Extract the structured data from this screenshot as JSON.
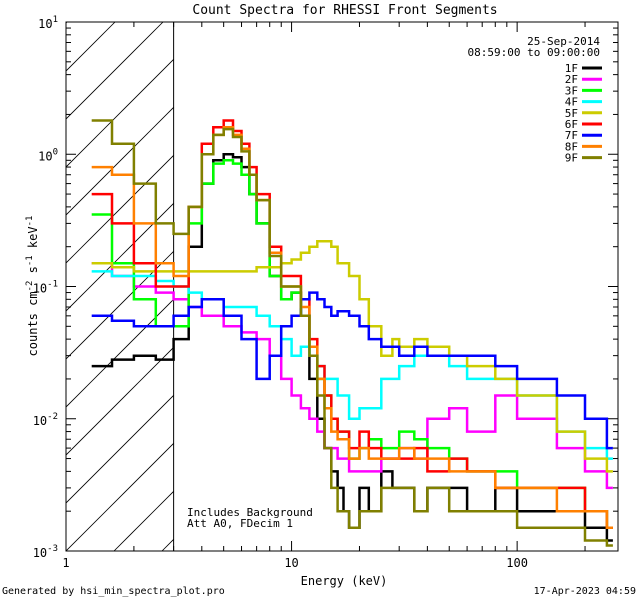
{
  "chart_data": {
    "type": "line",
    "title": "Count Spectra for RHESSI Front Segments",
    "xlabel": "Energy (keV)",
    "ylabel_parts": [
      "counts cm",
      "-2",
      " s",
      "-1",
      " keV",
      "-1"
    ],
    "xscale": "log",
    "yscale": "log",
    "xlim": [
      1,
      280
    ],
    "ylim": [
      0.001,
      10
    ],
    "x_ticks": [
      {
        "value": 1,
        "label": "1"
      },
      {
        "value": 10,
        "label": "10"
      },
      {
        "value": 100,
        "label": "100"
      }
    ],
    "y_ticks": [
      {
        "value": 0.001,
        "base": "10",
        "exp": "-3"
      },
      {
        "value": 0.01,
        "base": "10",
        "exp": "-2"
      },
      {
        "value": 0.1,
        "base": "10",
        "exp": "-1"
      },
      {
        "value": 1,
        "base": "10",
        "exp": "0"
      },
      {
        "value": 10,
        "base": "10",
        "exp": "1"
      }
    ],
    "hatched_region_x": [
      1,
      3
    ],
    "legend_position": "top-right",
    "header_lines": [
      "25-Sep-2014",
      "08:59:00 to 09:00:00"
    ],
    "annotations": [
      "Includes Background",
      "Att A0, FDecim 1"
    ],
    "series": [
      {
        "name": "1F",
        "color": "#000000",
        "x": [
          1.3,
          1.6,
          2.0,
          2.5,
          3.0,
          3.5,
          4.0,
          4.5,
          5.0,
          5.5,
          6.0,
          6.5,
          7.0,
          8.0,
          9.0,
          10,
          11,
          12,
          13,
          14,
          15,
          16,
          17,
          18,
          20,
          22,
          25,
          28,
          30,
          35,
          40,
          50,
          60,
          80,
          100,
          150,
          200,
          250
        ],
        "y": [
          0.025,
          0.028,
          0.03,
          0.028,
          0.04,
          0.2,
          0.6,
          0.9,
          1.0,
          0.95,
          0.8,
          0.5,
          0.3,
          0.12,
          0.08,
          0.09,
          0.06,
          0.02,
          0.01,
          0.006,
          0.004,
          0.003,
          0.002,
          0.0015,
          0.003,
          0.002,
          0.004,
          0.003,
          0.003,
          0.002,
          0.003,
          0.003,
          0.002,
          0.003,
          0.002,
          0.002,
          0.0015,
          0.0012
        ]
      },
      {
        "name": "2F",
        "color": "#ff00ff",
        "x": [
          1.3,
          1.6,
          2.0,
          2.5,
          3.0,
          3.5,
          4.0,
          5.0,
          6.0,
          7.0,
          8.0,
          9.0,
          10,
          11,
          12,
          13,
          14,
          16,
          18,
          20,
          25,
          30,
          35,
          40,
          50,
          60,
          80,
          100,
          150,
          200,
          250
        ],
        "y": [
          0.15,
          0.12,
          0.1,
          0.09,
          0.08,
          0.07,
          0.06,
          0.05,
          0.045,
          0.04,
          0.03,
          0.02,
          0.015,
          0.012,
          0.01,
          0.008,
          0.006,
          0.005,
          0.004,
          0.004,
          0.005,
          0.006,
          0.005,
          0.01,
          0.012,
          0.008,
          0.015,
          0.01,
          0.006,
          0.004,
          0.003
        ]
      },
      {
        "name": "3F",
        "color": "#00ff00",
        "x": [
          1.3,
          1.6,
          2.0,
          2.5,
          3.0,
          3.5,
          4.0,
          4.5,
          5.0,
          5.5,
          6.0,
          6.5,
          7.0,
          8.0,
          9.0,
          10,
          11,
          12,
          13,
          14,
          15,
          16,
          18,
          20,
          22,
          25,
          30,
          35,
          40,
          50,
          60,
          80,
          100,
          150,
          200,
          250
        ],
        "y": [
          0.35,
          0.15,
          0.08,
          0.05,
          0.05,
          0.3,
          0.6,
          0.85,
          0.9,
          0.85,
          0.7,
          0.5,
          0.3,
          0.12,
          0.08,
          0.09,
          0.06,
          0.03,
          0.02,
          0.015,
          0.01,
          0.008,
          0.005,
          0.006,
          0.007,
          0.006,
          0.008,
          0.007,
          0.006,
          0.005,
          0.004,
          0.004,
          0.003,
          0.003,
          0.002,
          0.0015
        ]
      },
      {
        "name": "4F",
        "color": "#00ffff",
        "x": [
          1.3,
          1.6,
          2.0,
          2.5,
          3.0,
          3.5,
          4.0,
          5.0,
          6.0,
          7.0,
          8.0,
          9.0,
          10,
          11,
          12,
          13,
          14,
          16,
          18,
          20,
          25,
          30,
          35,
          40,
          50,
          60,
          80,
          100,
          150,
          200,
          250
        ],
        "y": [
          0.13,
          0.12,
          0.12,
          0.11,
          0.1,
          0.09,
          0.08,
          0.07,
          0.07,
          0.06,
          0.05,
          0.04,
          0.03,
          0.035,
          0.03,
          0.025,
          0.02,
          0.015,
          0.01,
          0.012,
          0.02,
          0.025,
          0.03,
          0.03,
          0.025,
          0.02,
          0.02,
          0.015,
          0.008,
          0.006,
          0.005
        ]
      },
      {
        "name": "5F",
        "color": "#cccc00",
        "x": [
          1.3,
          1.6,
          2.0,
          2.5,
          3.0,
          4.0,
          5.0,
          6.0,
          7.0,
          8.0,
          9.0,
          10,
          11,
          12,
          13,
          14,
          15,
          16,
          18,
          20,
          22,
          25,
          28,
          30,
          35,
          40,
          50,
          60,
          80,
          100,
          150,
          200,
          250
        ],
        "y": [
          0.15,
          0.14,
          0.13,
          0.13,
          0.13,
          0.13,
          0.13,
          0.13,
          0.14,
          0.14,
          0.15,
          0.16,
          0.18,
          0.2,
          0.22,
          0.22,
          0.2,
          0.15,
          0.12,
          0.08,
          0.05,
          0.03,
          0.04,
          0.035,
          0.04,
          0.035,
          0.03,
          0.025,
          0.02,
          0.015,
          0.008,
          0.005,
          0.004
        ]
      },
      {
        "name": "6F",
        "color": "#ff0000",
        "x": [
          1.3,
          1.6,
          2.0,
          2.5,
          3.0,
          3.5,
          4.0,
          4.5,
          5.0,
          5.5,
          6.0,
          6.5,
          7.0,
          8.0,
          9.0,
          10,
          11,
          12,
          13,
          14,
          15,
          16,
          18,
          20,
          22,
          25,
          30,
          35,
          40,
          50,
          60,
          80,
          100,
          150,
          200,
          250
        ],
        "y": [
          0.5,
          0.3,
          0.15,
          0.1,
          0.1,
          0.4,
          1.2,
          1.6,
          1.8,
          1.5,
          1.2,
          0.8,
          0.5,
          0.2,
          0.12,
          0.12,
          0.08,
          0.04,
          0.025,
          0.015,
          0.01,
          0.008,
          0.006,
          0.008,
          0.006,
          0.005,
          0.005,
          0.006,
          0.004,
          0.005,
          0.004,
          0.003,
          0.003,
          0.003,
          0.002,
          0.0015
        ]
      },
      {
        "name": "7F",
        "color": "#0000ff",
        "x": [
          1.3,
          1.6,
          2.0,
          2.5,
          3.0,
          3.5,
          4.0,
          5.0,
          6.0,
          7.0,
          8.0,
          9.0,
          10,
          11,
          12,
          13,
          14,
          15,
          16,
          18,
          20,
          22,
          25,
          30,
          35,
          40,
          50,
          60,
          80,
          100,
          150,
          200,
          250
        ],
        "y": [
          0.06,
          0.055,
          0.05,
          0.05,
          0.06,
          0.07,
          0.08,
          0.06,
          0.04,
          0.02,
          0.03,
          0.05,
          0.06,
          0.08,
          0.09,
          0.08,
          0.07,
          0.06,
          0.065,
          0.06,
          0.05,
          0.04,
          0.035,
          0.03,
          0.035,
          0.03,
          0.03,
          0.03,
          0.025,
          0.02,
          0.015,
          0.01,
          0.006
        ]
      },
      {
        "name": "8F",
        "color": "#ff8000",
        "x": [
          1.3,
          1.6,
          2.0,
          2.5,
          3.0,
          3.5,
          4.0,
          4.5,
          5.0,
          5.5,
          6.0,
          6.5,
          7.0,
          8.0,
          9.0,
          10,
          11,
          12,
          13,
          14,
          15,
          16,
          18,
          20,
          22,
          25,
          30,
          35,
          40,
          50,
          60,
          80,
          100,
          150,
          200,
          250
        ],
        "y": [
          0.8,
          0.7,
          0.3,
          0.15,
          0.12,
          0.4,
          1.0,
          1.4,
          1.6,
          1.4,
          1.1,
          0.7,
          0.45,
          0.18,
          0.1,
          0.1,
          0.07,
          0.035,
          0.02,
          0.012,
          0.008,
          0.007,
          0.005,
          0.006,
          0.005,
          0.005,
          0.006,
          0.005,
          0.005,
          0.004,
          0.004,
          0.003,
          0.003,
          0.002,
          0.002,
          0.0015
        ]
      },
      {
        "name": "9F",
        "color": "#808000",
        "x": [
          1.3,
          1.6,
          2.0,
          2.5,
          3.0,
          3.5,
          4.0,
          4.5,
          5.0,
          5.5,
          6.0,
          6.5,
          7.0,
          8.0,
          9.0,
          10,
          11,
          12,
          13,
          14,
          15,
          16,
          18,
          20,
          22,
          25,
          30,
          35,
          40,
          50,
          60,
          80,
          100,
          150,
          200,
          250
        ],
        "y": [
          1.8,
          1.2,
          0.6,
          0.3,
          0.25,
          0.4,
          1.0,
          1.4,
          1.55,
          1.35,
          1.05,
          0.7,
          0.45,
          0.17,
          0.1,
          0.1,
          0.06,
          0.03,
          0.015,
          0.006,
          0.003,
          0.002,
          0.0015,
          0.002,
          0.002,
          0.003,
          0.003,
          0.002,
          0.003,
          0.002,
          0.002,
          0.002,
          0.0015,
          0.0015,
          0.0012,
          0.0011
        ]
      }
    ]
  },
  "footer": {
    "left": "Generated by hsi_min_spectra_plot.pro",
    "right": "17-Apr-2023 04:59"
  }
}
